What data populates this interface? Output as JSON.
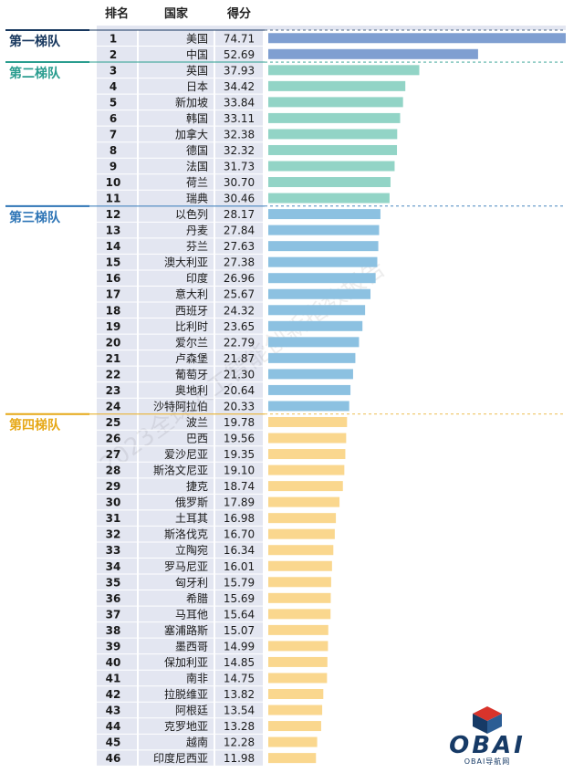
{
  "headers": {
    "rank": "排名",
    "country": "国家",
    "score": "得分"
  },
  "colors": {
    "tier1_bar": "#7f9fd1",
    "tier2_bar": "#92d4c6",
    "tier3_bar": "#8cc1e1",
    "tier4_bar": "#fad78e",
    "tier1_label": "#17375e",
    "tier2_label": "#2a9d8f",
    "tier3_label": "#2e75b6",
    "tier4_label": "#e6a817",
    "table_shade": "#e3e6f1"
  },
  "chart_data": {
    "type": "bar",
    "orientation": "horizontal",
    "columns": [
      "排名",
      "国家",
      "得分"
    ],
    "xlim": [
      0,
      74.71
    ],
    "grid": false,
    "tiers": [
      {
        "label": "第一梯队",
        "rows": [
          {
            "rank": 1,
            "country": "美国",
            "score": 74.71
          },
          {
            "rank": 2,
            "country": "中国",
            "score": 52.69
          }
        ]
      },
      {
        "label": "第二梯队",
        "rows": [
          {
            "rank": 3,
            "country": "英国",
            "score": 37.93
          },
          {
            "rank": 4,
            "country": "日本",
            "score": 34.42
          },
          {
            "rank": 5,
            "country": "新加坡",
            "score": 33.84
          },
          {
            "rank": 6,
            "country": "韩国",
            "score": 33.11
          },
          {
            "rank": 7,
            "country": "加拿大",
            "score": 32.38
          },
          {
            "rank": 8,
            "country": "德国",
            "score": 32.32
          },
          {
            "rank": 9,
            "country": "法国",
            "score": 31.73
          },
          {
            "rank": 10,
            "country": "荷兰",
            "score": 30.7
          },
          {
            "rank": 11,
            "country": "瑞典",
            "score": 30.46
          }
        ]
      },
      {
        "label": "第三梯队",
        "rows": [
          {
            "rank": 12,
            "country": "以色列",
            "score": 28.17
          },
          {
            "rank": 13,
            "country": "丹麦",
            "score": 27.84
          },
          {
            "rank": 14,
            "country": "芬兰",
            "score": 27.63
          },
          {
            "rank": 15,
            "country": "澳大利亚",
            "score": 27.38
          },
          {
            "rank": 16,
            "country": "印度",
            "score": 26.96
          },
          {
            "rank": 17,
            "country": "意大利",
            "score": 25.67
          },
          {
            "rank": 18,
            "country": "西班牙",
            "score": 24.32
          },
          {
            "rank": 19,
            "country": "比利时",
            "score": 23.65
          },
          {
            "rank": 20,
            "country": "爱尔兰",
            "score": 22.79
          },
          {
            "rank": 21,
            "country": "卢森堡",
            "score": 21.87
          },
          {
            "rank": 22,
            "country": "葡萄牙",
            "score": 21.3
          },
          {
            "rank": 23,
            "country": "奥地利",
            "score": 20.64
          },
          {
            "rank": 24,
            "country": "沙特阿拉伯",
            "score": 20.33
          }
        ]
      },
      {
        "label": "第四梯队",
        "rows": [
          {
            "rank": 25,
            "country": "波兰",
            "score": 19.78
          },
          {
            "rank": 26,
            "country": "巴西",
            "score": 19.56
          },
          {
            "rank": 27,
            "country": "爱沙尼亚",
            "score": 19.35
          },
          {
            "rank": 28,
            "country": "斯洛文尼亚",
            "score": 19.1
          },
          {
            "rank": 29,
            "country": "捷克",
            "score": 18.74
          },
          {
            "rank": 30,
            "country": "俄罗斯",
            "score": 17.89
          },
          {
            "rank": 31,
            "country": "土耳其",
            "score": 16.98
          },
          {
            "rank": 32,
            "country": "斯洛伐克",
            "score": 16.7
          },
          {
            "rank": 33,
            "country": "立陶宛",
            "score": 16.34
          },
          {
            "rank": 34,
            "country": "罗马尼亚",
            "score": 16.01
          },
          {
            "rank": 35,
            "country": "匈牙利",
            "score": 15.79
          },
          {
            "rank": 36,
            "country": "希腊",
            "score": 15.69
          },
          {
            "rank": 37,
            "country": "马耳他",
            "score": 15.64
          },
          {
            "rank": 38,
            "country": "塞浦路斯",
            "score": 15.07
          },
          {
            "rank": 39,
            "country": "墨西哥",
            "score": 14.99
          },
          {
            "rank": 40,
            "country": "保加利亚",
            "score": 14.85
          },
          {
            "rank": 41,
            "country": "南非",
            "score": 14.75
          },
          {
            "rank": 42,
            "country": "拉脱维亚",
            "score": 13.82
          },
          {
            "rank": 43,
            "country": "阿根廷",
            "score": 13.54
          },
          {
            "rank": 44,
            "country": "克罗地亚",
            "score": 13.28
          },
          {
            "rank": 45,
            "country": "越南",
            "score": 12.28
          },
          {
            "rank": 46,
            "country": "印度尼西亚",
            "score": 11.98
          }
        ]
      }
    ]
  },
  "watermark": "2023全球人工智能创新指数报告",
  "logo": {
    "name": "OBAI",
    "subtitle": "OBAI导航网"
  }
}
